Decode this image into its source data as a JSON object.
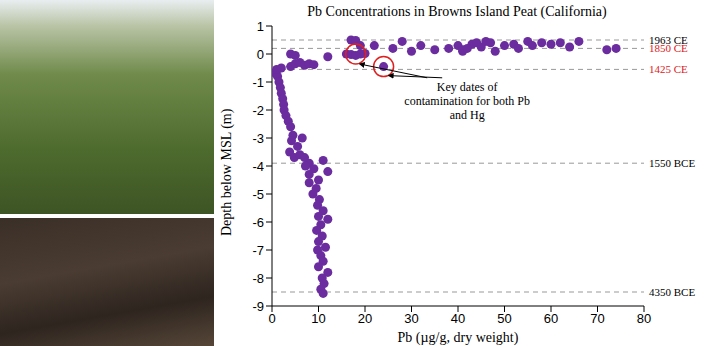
{
  "chart_data": {
    "type": "scatter",
    "title": "Pb Concentrations in Browns Island Peat (California)",
    "x_label": "Pb (µg/g, dry weight)",
    "y_label": "Depth below MSL (m)",
    "xlim": [
      0,
      80
    ],
    "xticks": [
      0,
      10,
      20,
      30,
      40,
      50,
      60,
      70,
      80
    ],
    "ylim": [
      -9,
      1
    ],
    "yticks": [
      -9,
      -8,
      -7,
      -6,
      -5,
      -4,
      -3,
      -2,
      -1,
      0,
      1
    ],
    "color": "#6a2c9e",
    "marker": "circle",
    "grid": false,
    "x": [
      1,
      0.8,
      1.2,
      1.5,
      1.8,
      2,
      2.3,
      2.5,
      2.6,
      3,
      3.5,
      4,
      4.5,
      4.2,
      5.5,
      3.8,
      4.8,
      6,
      7,
      8,
      7.2,
      9,
      8,
      10,
      9.5,
      8.8,
      10.2,
      9.8,
      11,
      10,
      12,
      10.5,
      9.6,
      10.8,
      10,
      11.5,
      9.8,
      10.5,
      11,
      10,
      12,
      10.8,
      11.2,
      10.5,
      11,
      8,
      12,
      11,
      6.5,
      1,
      2,
      4,
      5,
      6,
      7,
      8,
      9,
      4,
      5,
      12,
      16,
      17,
      18,
      19,
      20,
      17,
      18,
      19,
      22,
      24,
      26,
      28,
      30,
      32,
      35,
      38,
      40,
      41,
      43,
      44,
      45,
      46,
      48,
      50,
      52,
      53,
      55,
      56,
      58,
      60,
      62,
      64,
      66,
      72,
      74,
      41,
      42,
      47
    ],
    "values": [
      -0.6,
      -0.7,
      -0.8,
      -1.0,
      -1.2,
      -1.4,
      -1.6,
      -1.8,
      -2.0,
      -2.2,
      -2.4,
      -2.6,
      -2.9,
      -3.1,
      -3.3,
      -3.5,
      -3.7,
      -3.6,
      -3.7,
      -3.9,
      -4.0,
      -4.1,
      -4.3,
      -4.5,
      -4.8,
      -5.0,
      -5.2,
      -5.4,
      -5.6,
      -5.8,
      -5.9,
      -6.1,
      -6.3,
      -6.5,
      -6.7,
      -6.9,
      -7.0,
      -7.2,
      -7.4,
      -7.6,
      -7.8,
      -8.0,
      -8.2,
      -8.4,
      -8.55,
      -4.6,
      -4.2,
      -3.8,
      -3.0,
      -0.55,
      -0.5,
      -0.45,
      -0.35,
      -0.3,
      -0.4,
      -0.35,
      -0.38,
      0.0,
      -0.05,
      -0.1,
      0.0,
      -0.02,
      -0.05,
      0.0,
      0.02,
      0.5,
      0.48,
      0.3,
      0.3,
      -0.45,
      0.2,
      0.45,
      0.1,
      0.3,
      0.15,
      0.2,
      0.3,
      0.1,
      0.35,
      0.4,
      0.25,
      0.45,
      0.1,
      0.3,
      0.35,
      0.2,
      0.45,
      0.3,
      0.4,
      0.35,
      0.4,
      0.25,
      0.45,
      0.15,
      0.2,
      0.15,
      0.2,
      0.4
    ],
    "reference_lines": [
      {
        "y": 0.5,
        "label": "1963 CE",
        "color": "#000000"
      },
      {
        "y": 0.2,
        "label": "1850 CE",
        "color": "#e02020"
      },
      {
        "y": -0.55,
        "label": "1425 CE",
        "color": "#e02020"
      },
      {
        "y": -3.9,
        "label": "1550 BCE",
        "color": "#000000"
      },
      {
        "y": -8.5,
        "label": "4350 BCE",
        "color": "#000000"
      }
    ],
    "highlight_points": [
      {
        "x": 18,
        "y": 0.0
      },
      {
        "x": 24,
        "y": -0.45
      }
    ],
    "annotation": "Key dates of contamination for both Pb and Hg"
  }
}
